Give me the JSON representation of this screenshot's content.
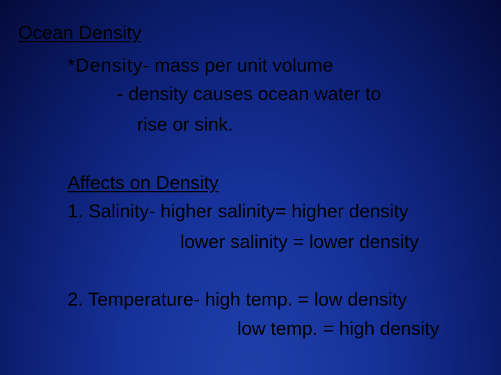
{
  "slide": {
    "title": "Ocean Density",
    "definition_term": "*Density",
    "definition_rest": "- mass per unit volume",
    "definition_note_1": "- density causes ocean water to",
    "definition_note_2": "rise or sink.",
    "affects_heading": "Affects on Density",
    "salinity_line_1": "1. Salinity- higher salinity= higher density",
    "salinity_line_2": "lower salinity = lower density",
    "temperature_line_1": "2. Temperature- high temp. = low density",
    "temperature_line_2": "low temp. = high density"
  },
  "colors": {
    "text": "#000000",
    "background_center": "#1f3fa8",
    "background_edge": "#040a3a"
  }
}
